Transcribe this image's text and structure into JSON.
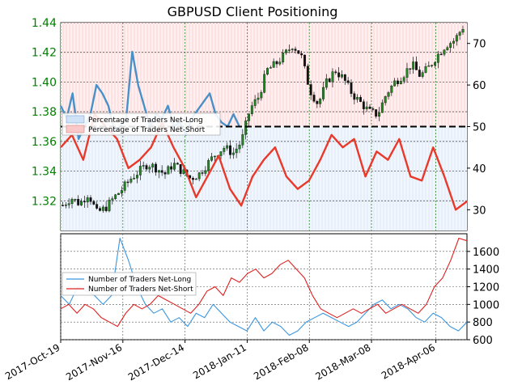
{
  "chart_data": [
    {
      "panel": "top",
      "type": "candlestick-with-lines",
      "title": "GBPUSD Client Positioning",
      "left_axis": {
        "ylim": [
          1.3,
          1.44
        ],
        "ticks": [
          1.32,
          1.34,
          1.36,
          1.38,
          1.4,
          1.42,
          1.44
        ],
        "tick_labels": [
          "1.32",
          "1.34",
          "1.36",
          "1.38",
          "1.40",
          "1.42",
          "1.44"
        ],
        "color": "#008000"
      },
      "right_axis": {
        "ylim": [
          25,
          75
        ],
        "ticks": [
          30,
          40,
          50,
          60,
          70
        ],
        "tick_labels": [
          "30",
          "40",
          "50",
          "60",
          "70"
        ]
      },
      "x": {
        "range": [
          "2017-10-19",
          "2018-04-20"
        ],
        "ticks": [
          "2017-10-19",
          "2017-11-16",
          "2017-12-14",
          "2018-01-11",
          "2018-02-08",
          "2018-03-08",
          "2018-04-06"
        ],
        "tick_labels": [
          "2017-Oct-19",
          "2017-Nov-16",
          "2017-Dec-14",
          "2018-Jan-11",
          "2018-Feb-08",
          "2018-Mar-08",
          "2018-Apr-06"
        ]
      },
      "reference_line": 50,
      "grid": true,
      "legend": {
        "placement": "center-left",
        "entries": [
          "Percentage of Traders Net-Long",
          "Percentage of Traders Net-Short"
        ]
      },
      "series": [
        {
          "name": "Percentage of Traders Net-Long",
          "color": "#4a90c8",
          "values": [
            55,
            52,
            58,
            47,
            50,
            53,
            60,
            58,
            55,
            49,
            50,
            52,
            68,
            60,
            55,
            50,
            53,
            52,
            55,
            50,
            51,
            48,
            52,
            54,
            56,
            58,
            53,
            51,
            50,
            53,
            50
          ]
        },
        {
          "name": "Percentage of Traders Net-Short",
          "color": "#e8392a",
          "values": [
            45,
            48,
            42,
            53,
            50,
            47,
            40,
            42,
            45,
            51,
            45,
            40,
            33,
            38,
            43,
            35,
            31,
            38,
            42,
            45,
            38,
            35,
            37,
            42,
            48,
            45,
            47,
            38,
            44,
            42,
            47,
            38,
            37,
            45,
            38,
            30,
            32
          ]
        }
      ],
      "price_anchor_points": [
        1.317,
        1.322,
        1.318,
        1.325,
        1.312,
        1.315,
        1.322,
        1.328,
        1.335,
        1.34,
        1.345,
        1.342,
        1.338,
        1.345,
        1.34,
        1.335,
        1.338,
        1.345,
        1.352,
        1.356,
        1.352,
        1.36,
        1.382,
        1.39,
        1.408,
        1.412,
        1.418,
        1.425,
        1.418,
        1.395,
        1.385,
        1.4,
        1.408,
        1.402,
        1.392,
        1.386,
        1.38,
        1.378,
        1.392,
        1.4,
        1.405,
        1.412,
        1.404,
        1.41,
        1.418,
        1.425,
        1.428,
        1.437
      ]
    },
    {
      "panel": "bottom",
      "type": "line",
      "right_axis": {
        "ylim": [
          600,
          1800
        ],
        "ticks": [
          600,
          800,
          1000,
          1200,
          1400,
          1600
        ],
        "tick_labels": [
          "600",
          "800",
          "1000",
          "1200",
          "1400",
          "1600"
        ]
      },
      "legend": {
        "placement": "center-left",
        "entries": [
          "Number of Traders Net-Long",
          "Number of Traders Net-Short"
        ]
      },
      "series": [
        {
          "name": "Number of Traders Net-Long",
          "color": "#3a96e0",
          "values": [
            1100,
            1000,
            1200,
            1150,
            1100,
            1000,
            1100,
            1750,
            1500,
            1200,
            1000,
            900,
            950,
            800,
            850,
            750,
            900,
            850,
            1000,
            900,
            800,
            750,
            700,
            850,
            700,
            800,
            750,
            650,
            700,
            800,
            850,
            900,
            850,
            800,
            750,
            800,
            900,
            1000,
            1050,
            950,
            1000,
            950,
            850,
            800,
            900,
            850,
            750,
            700,
            800
          ]
        },
        {
          "name": "Number of Traders Net-Short",
          "color": "#e02020",
          "values": [
            950,
            1000,
            900,
            1000,
            950,
            850,
            800,
            750,
            900,
            1000,
            950,
            1000,
            1100,
            1050,
            1000,
            950,
            900,
            1000,
            1150,
            1200,
            1100,
            1300,
            1250,
            1350,
            1400,
            1300,
            1350,
            1450,
            1500,
            1400,
            1300,
            1100,
            950,
            900,
            850,
            900,
            950,
            900,
            950,
            1000,
            900,
            950,
            1000,
            950,
            900,
            1000,
            1200,
            1300,
            1500,
            1750,
            1720
          ]
        }
      ]
    }
  ]
}
